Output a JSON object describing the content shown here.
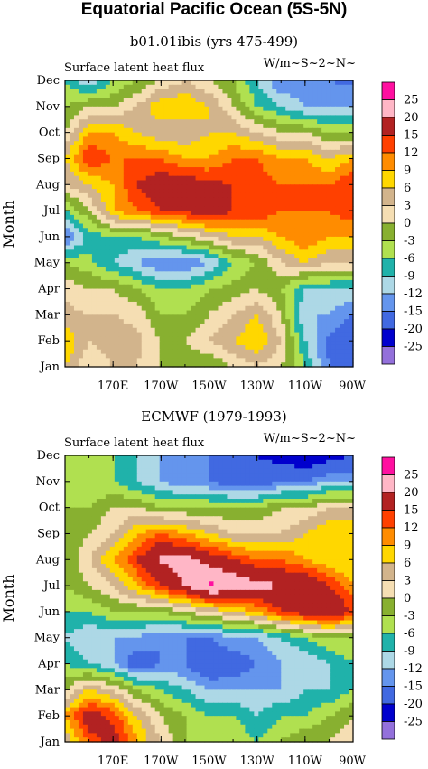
{
  "figure": {
    "title": "Equatorial Pacific Ocean (5S-5N)",
    "panels": [
      {
        "subtitle": "b01.01ibis (yrs 475-499)",
        "left_label": "Surface latent heat flux",
        "right_label": "W/m~S~2~N~",
        "ylabel": "Month"
      },
      {
        "subtitle": "ECMWF (1979-1993)",
        "left_label": "Surface latent heat flux",
        "right_label": "W/m~S~2~N~",
        "ylabel": "Month"
      }
    ]
  },
  "chart_data": [
    {
      "type": "heatmap",
      "title": "b01.01ibis (yrs 475-499)",
      "xlabel": "",
      "ylabel": "Month",
      "x_ticks": [
        "170E",
        "170W",
        "150W",
        "130W",
        "110W",
        "90W"
      ],
      "y_ticks": [
        "Jan",
        "Feb",
        "Mar",
        "Apr",
        "May",
        "Jun",
        "Jul",
        "Aug",
        "Sep",
        "Oct",
        "Nov",
        "Dec"
      ],
      "x_lon": [
        150,
        160,
        170,
        180,
        190,
        200,
        210,
        220,
        230,
        240,
        250,
        260,
        270
      ],
      "levels": [
        -25,
        -20,
        -15,
        -12,
        -9,
        -6,
        -3,
        0,
        3,
        6,
        9,
        12,
        15,
        20,
        25
      ],
      "values": [
        [
          6,
          0,
          3,
          3,
          0,
          -3,
          -3,
          0,
          3,
          0,
          -6,
          -15,
          -18
        ],
        [
          9,
          3,
          5,
          4,
          0,
          0,
          3,
          6,
          9,
          3,
          -9,
          -16,
          -20
        ],
        [
          4,
          3,
          3,
          2,
          -3,
          -3,
          0,
          3,
          6,
          0,
          -12,
          -12,
          -15
        ],
        [
          2,
          0,
          0,
          -3,
          -6,
          -6,
          -3,
          -2,
          0,
          -3,
          -9,
          -9,
          -9
        ],
        [
          -3,
          -5,
          -9,
          -12,
          -15,
          -15,
          -12,
          -6,
          -3,
          3,
          6,
          3,
          3
        ],
        [
          -16,
          -8,
          -6,
          -6,
          -3,
          0,
          3,
          6,
          6,
          9,
          12,
          9,
          9
        ],
        [
          -6,
          0,
          9,
          12,
          15,
          16,
          18,
          15,
          15,
          12,
          12,
          12,
          14
        ],
        [
          3,
          6,
          9,
          15,
          18,
          18,
          16,
          15,
          14,
          12,
          12,
          12,
          15
        ],
        [
          6,
          15,
          12,
          12,
          12,
          9,
          9,
          12,
          12,
          9,
          9,
          6,
          9
        ],
        [
          0,
          9,
          9,
          6,
          3,
          3,
          6,
          6,
          3,
          0,
          0,
          -3,
          -3
        ],
        [
          -3,
          0,
          0,
          3,
          9,
          9,
          6,
          0,
          -6,
          -9,
          -12,
          -12,
          -12
        ],
        [
          -6,
          -12,
          -6,
          -3,
          0,
          3,
          0,
          -3,
          -9,
          -15,
          -15,
          -15,
          -16
        ]
      ]
    },
    {
      "type": "heatmap",
      "title": "ECMWF (1979-1993)",
      "xlabel": "",
      "ylabel": "Month",
      "x_ticks": [
        "170E",
        "170W",
        "150W",
        "130W",
        "110W",
        "90W"
      ],
      "y_ticks": [
        "Jan",
        "Feb",
        "Mar",
        "Apr",
        "May",
        "Jun",
        "Jul",
        "Aug",
        "Sep",
        "Oct",
        "Nov",
        "Dec"
      ],
      "x_lon": [
        150,
        160,
        170,
        180,
        190,
        200,
        210,
        220,
        230,
        240,
        250,
        260,
        270
      ],
      "levels": [
        -25,
        -20,
        -15,
        -12,
        -9,
        -6,
        -3,
        0,
        3,
        6,
        9,
        12,
        15,
        20,
        25
      ],
      "values": [
        [
          3,
          13,
          17,
          9,
          3,
          -3,
          -3,
          -3,
          -6,
          -3,
          0,
          0,
          3
        ],
        [
          9,
          18,
          14,
          6,
          0,
          -3,
          -6,
          -6,
          -9,
          -6,
          -6,
          -3,
          0
        ],
        [
          0,
          6,
          3,
          -3,
          -6,
          -9,
          -12,
          -12,
          -12,
          -12,
          -9,
          -9,
          -6
        ],
        [
          -6,
          -9,
          -12,
          -18,
          -15,
          -15,
          -20,
          -18,
          -15,
          -12,
          -12,
          -9,
          -6
        ],
        [
          -9,
          -12,
          -12,
          -12,
          -15,
          -15,
          -15,
          -12,
          -12,
          -9,
          -6,
          -3,
          -3
        ],
        [
          -6,
          -6,
          -3,
          -3,
          -3,
          0,
          3,
          6,
          9,
          15,
          18,
          20,
          15
        ],
        [
          -3,
          0,
          3,
          9,
          15,
          20,
          26,
          24,
          22,
          20,
          20,
          15,
          9
        ],
        [
          -3,
          3,
          9,
          15,
          21,
          22,
          18,
          15,
          12,
          12,
          9,
          6,
          6
        ],
        [
          -3,
          0,
          3,
          9,
          12,
          9,
          6,
          3,
          3,
          3,
          6,
          9,
          9
        ],
        [
          -3,
          -3,
          0,
          0,
          -3,
          -3,
          -3,
          -3,
          -3,
          0,
          0,
          3,
          3
        ],
        [
          -3,
          -6,
          -6,
          -9,
          -12,
          -15,
          -15,
          -18,
          -18,
          -15,
          -15,
          -12,
          -12
        ],
        [
          -3,
          -3,
          -6,
          -9,
          -12,
          -12,
          -15,
          -20,
          -20,
          -22,
          -25,
          -22,
          -20
        ]
      ]
    }
  ],
  "colorbar": {
    "labels": [
      "25",
      "20",
      "15",
      "12",
      "9",
      "6",
      "3",
      "0",
      "-3",
      "-6",
      "-9",
      "-12",
      "-15",
      "-20",
      "-25"
    ],
    "colors": [
      "#ff10a0",
      "#ffb6c6",
      "#b22222",
      "#ff4000",
      "#ff8c00",
      "#ffd700",
      "#d2b48c",
      "#f5deb3",
      "#88b030",
      "#b0e050",
      "#20b2aa",
      "#add8e6",
      "#6495ed",
      "#4169e1",
      "#0000cd",
      "#9370db"
    ]
  }
}
